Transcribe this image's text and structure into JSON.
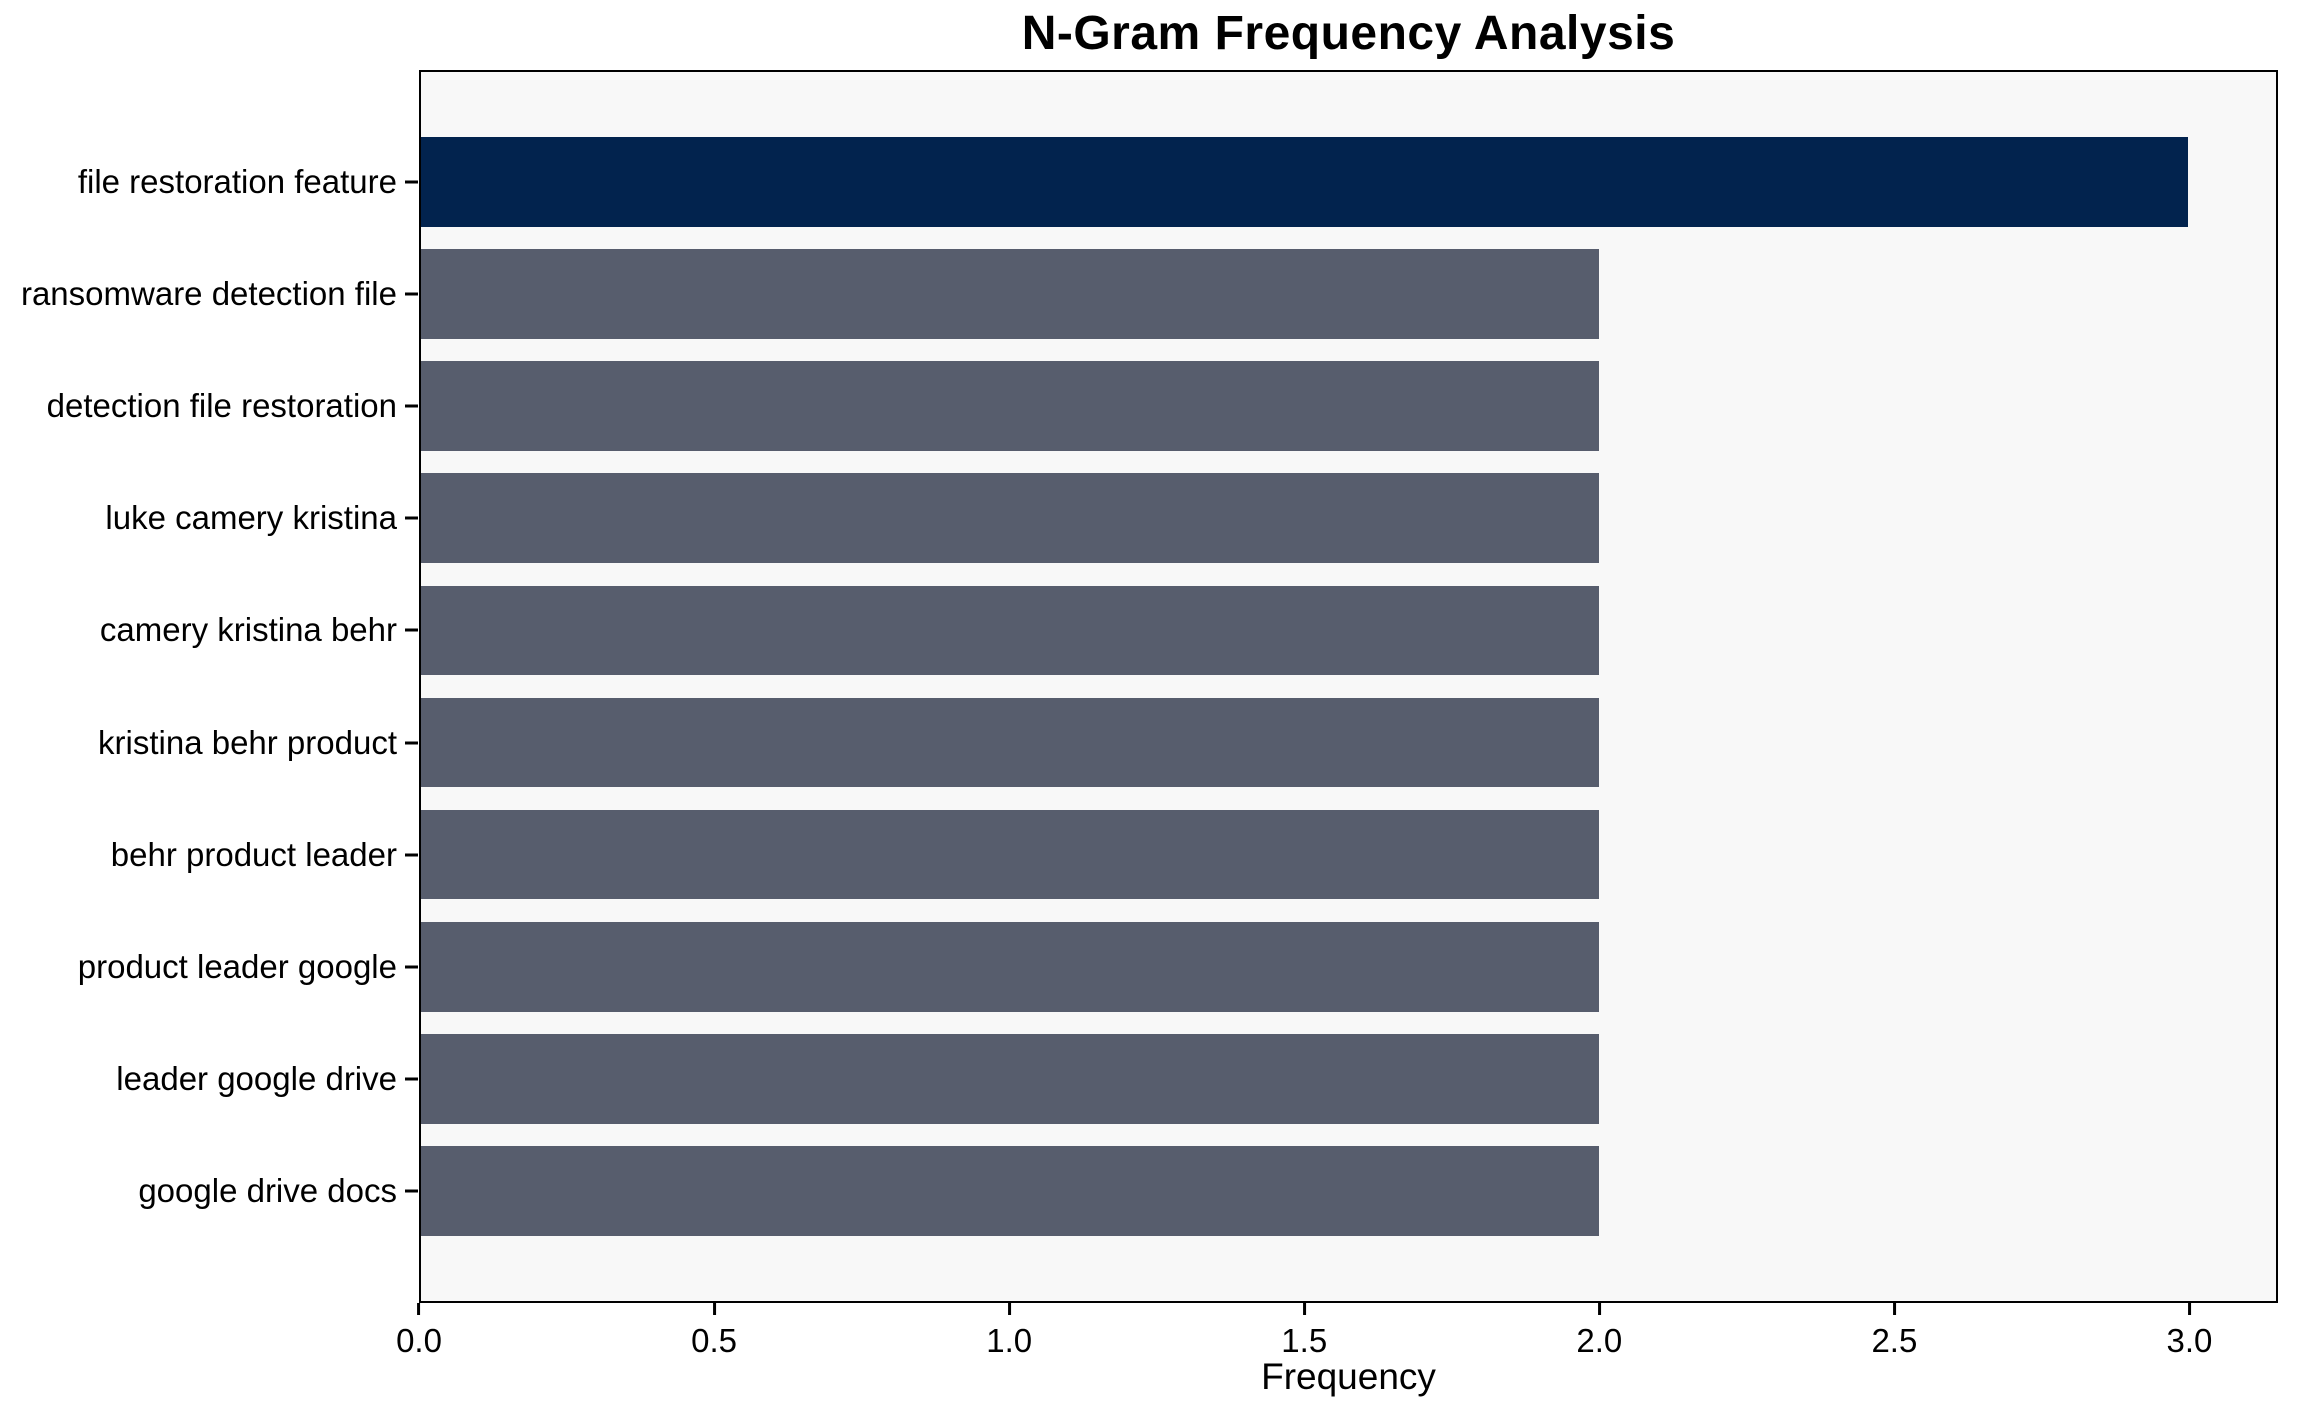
{
  "chart_data": {
    "type": "bar",
    "orientation": "horizontal",
    "title": "N-Gram Frequency Analysis",
    "xlabel": "Frequency",
    "ylabel": "",
    "categories": [
      "file restoration feature",
      "ransomware detection file",
      "detection file restoration",
      "luke camery kristina",
      "camery kristina behr",
      "kristina behr product",
      "behr product leader",
      "product leader google",
      "leader google drive",
      "google drive docs"
    ],
    "values": [
      3,
      2,
      2,
      2,
      2,
      2,
      2,
      2,
      2,
      2
    ],
    "bar_colors": [
      "#02234E",
      "#575D6D",
      "#575D6D",
      "#575D6D",
      "#575D6D",
      "#575D6D",
      "#575D6D",
      "#575D6D",
      "#575D6D",
      "#575D6D"
    ],
    "highlight_color": "#02234E",
    "default_bar_color": "#575D6D",
    "xlim": [
      0,
      3.15
    ],
    "xticks": [
      {
        "value": 0.0,
        "label": "0.0"
      },
      {
        "value": 0.5,
        "label": "0.5"
      },
      {
        "value": 1.0,
        "label": "1.0"
      },
      {
        "value": 1.5,
        "label": "1.5"
      },
      {
        "value": 2.0,
        "label": "2.0"
      },
      {
        "value": 2.5,
        "label": "2.5"
      },
      {
        "value": 3.0,
        "label": "3.0"
      }
    ],
    "plot_background": "#F8F8F8",
    "figure_background": "#FFFFFF",
    "spine_color": "#000000",
    "grid": false,
    "legend": null
  }
}
